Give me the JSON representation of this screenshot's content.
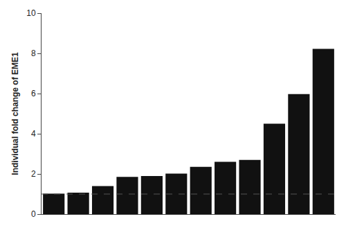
{
  "chart_data": {
    "type": "bar",
    "categories": [
      null,
      null,
      null,
      null,
      null,
      null,
      null,
      null,
      null,
      null,
      null,
      null
    ],
    "values": [
      1.02,
      1.07,
      1.4,
      1.85,
      1.9,
      2.02,
      2.35,
      2.6,
      2.7,
      4.5,
      5.97,
      8.22
    ],
    "color": "#111111",
    "ylabel": "Individual fold change of EME1",
    "ylim": [
      0,
      10
    ],
    "yticks": [
      0,
      2,
      4,
      6,
      8,
      10
    ],
    "grid": false,
    "tick_labels": "y",
    "reference_line": {
      "y": 1.0,
      "color": "#555555",
      "line_style": "dashed"
    }
  }
}
